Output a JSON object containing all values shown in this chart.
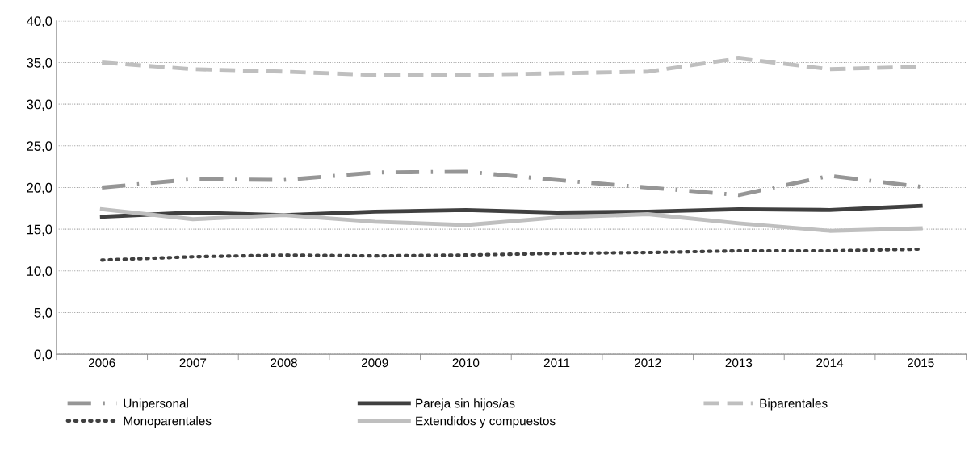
{
  "chart_data": {
    "type": "line",
    "categories": [
      "2006",
      "2007",
      "2008",
      "2009",
      "2010",
      "2011",
      "2012",
      "2013",
      "2014",
      "2015"
    ],
    "series": [
      {
        "name": "Unipersonal",
        "color": "#969696",
        "line_style": "dashdot",
        "values": [
          20.0,
          21.0,
          20.9,
          21.8,
          21.9,
          20.9,
          20.0,
          19.1,
          21.4,
          20.1
        ]
      },
      {
        "name": "Pareja sin hijos/as",
        "color": "#404040",
        "line_style": "solid",
        "values": [
          16.5,
          17.0,
          16.7,
          17.1,
          17.3,
          17.0,
          17.1,
          17.4,
          17.3,
          17.8
        ]
      },
      {
        "name": "Biparentales",
        "color": "#bfbfbf",
        "line_style": "dashed",
        "values": [
          35.0,
          34.2,
          33.9,
          33.5,
          33.5,
          33.7,
          33.9,
          35.5,
          34.2,
          34.5
        ]
      },
      {
        "name": "Monoparentales",
        "color": "#404040",
        "line_style": "dotted",
        "values": [
          11.3,
          11.7,
          11.9,
          11.8,
          11.9,
          12.1,
          12.2,
          12.4,
          12.4,
          12.6
        ]
      },
      {
        "name": "Extendidos y compuestos",
        "color": "#bfbfbf",
        "line_style": "solid",
        "values": [
          17.4,
          16.2,
          16.7,
          15.9,
          15.5,
          16.4,
          16.8,
          15.7,
          14.8,
          15.1
        ]
      }
    ],
    "ylim": [
      0,
      40
    ],
    "yticks": [
      {
        "value": 0,
        "label": "0,0"
      },
      {
        "value": 5,
        "label": "5,0"
      },
      {
        "value": 10,
        "label": "10,0"
      },
      {
        "value": 15,
        "label": "15,0"
      },
      {
        "value": 20,
        "label": "20,0"
      },
      {
        "value": 25,
        "label": "25,0"
      },
      {
        "value": 30,
        "label": "30,0"
      },
      {
        "value": 35,
        "label": "35,0"
      },
      {
        "value": 40,
        "label": "40,0"
      }
    ],
    "grid": "y",
    "legend": "bottom",
    "marker": "none"
  }
}
